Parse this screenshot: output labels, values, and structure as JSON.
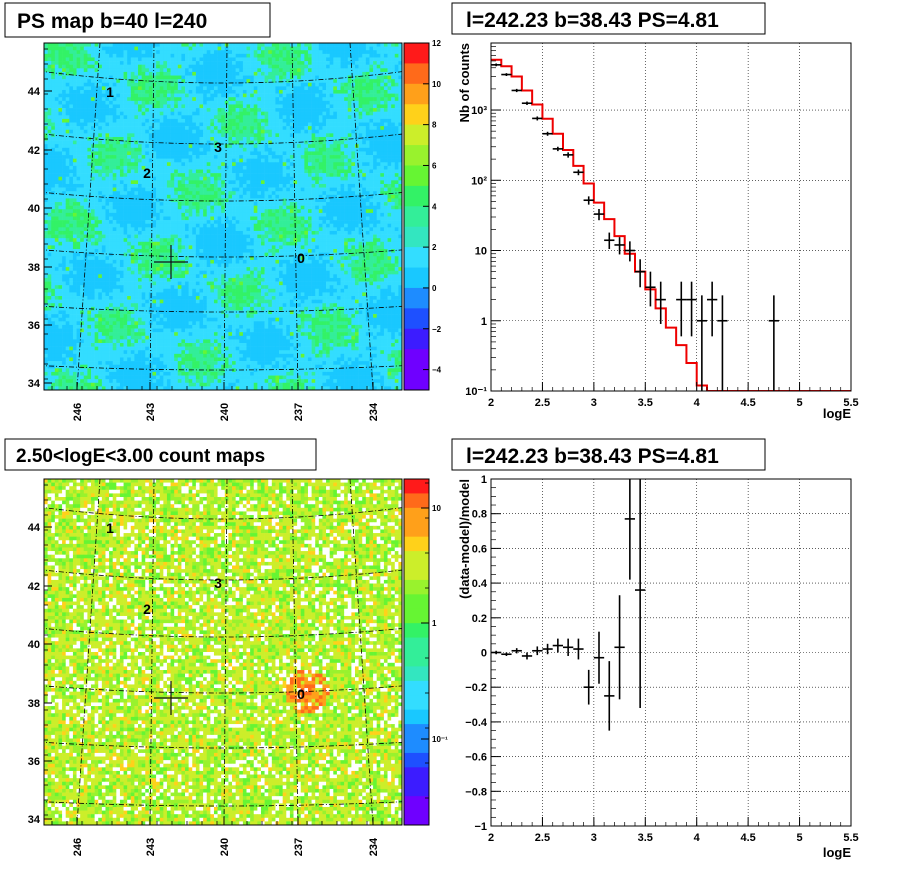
{
  "colors": {
    "axis": "#000000",
    "model": "#ee0000",
    "data": "#000000",
    "grid": "#000000",
    "map_bg": "#33ddff"
  },
  "chart_data": [
    {
      "id": "ps-map",
      "type": "heatmap",
      "title": "PS map b=40 l=240",
      "xticks": [
        "246",
        "243",
        "240",
        "237",
        "234"
      ],
      "yticks": [
        "44",
        "42",
        "40",
        "38",
        "36",
        "34"
      ],
      "colorbar": {
        "min": -5,
        "max": 12,
        "ticks": [
          "12",
          "10",
          "8",
          "6",
          "4",
          "2",
          "0",
          "−2",
          "−4"
        ]
      },
      "sources": [
        {
          "label": "1"
        },
        {
          "label": "3"
        },
        {
          "label": "2"
        },
        {
          "label": "0"
        }
      ],
      "marker": "+"
    },
    {
      "id": "spectrum",
      "type": "line",
      "title": "l=242.23 b=38.43 PS=4.81",
      "xlabel": "logE",
      "ylabel": "Nb of counts",
      "xlim": [
        2,
        5.5
      ],
      "ylim": [
        0.1,
        9000
      ],
      "yscale": "log",
      "xticks": [
        "2",
        "2.5",
        "3",
        "3.5",
        "4",
        "4.5",
        "5",
        "5.5"
      ],
      "yticks": [
        {
          "v": 1000,
          "label": "10³"
        },
        {
          "v": 100,
          "label": "10²"
        },
        {
          "v": 10,
          "label": "10"
        },
        {
          "v": 1,
          "label": "1"
        },
        {
          "v": 0.1,
          "label": "10⁻¹"
        }
      ],
      "grid": true,
      "series": [
        {
          "role": "model",
          "x": [
            2.0,
            2.1,
            2.2,
            2.3,
            2.4,
            2.5,
            2.6,
            2.7,
            2.8,
            2.9,
            3.0,
            3.1,
            3.2,
            3.3,
            3.4,
            3.5,
            3.6,
            3.7,
            3.8,
            3.9,
            4.0,
            4.1,
            4.2,
            4.3,
            4.4,
            4.5,
            4.6,
            4.7,
            4.8,
            4.9,
            5.0,
            5.1,
            5.2,
            5.3,
            5.4,
            5.5
          ],
          "y": [
            5200,
            4200,
            3000,
            1900,
            1200,
            750,
            460,
            270,
            160,
            90,
            48,
            28,
            16,
            9,
            5,
            2.8,
            1.5,
            0.8,
            0.45,
            0.25,
            0.12,
            0.1,
            0.1,
            0.1,
            0.1,
            0.1,
            0.1,
            0.1,
            0.1,
            0.1,
            0.1,
            0.1,
            0.1,
            0.1,
            0.1,
            0.1
          ]
        },
        {
          "role": "data",
          "points": [
            {
              "x": 2.05,
              "y": 4400,
              "lo": 4200,
              "hi": 4600
            },
            {
              "x": 2.15,
              "y": 3200,
              "lo": 3050,
              "hi": 3350
            },
            {
              "x": 2.25,
              "y": 1900,
              "lo": 1800,
              "hi": 2000
            },
            {
              "x": 2.35,
              "y": 1250,
              "lo": 1180,
              "hi": 1320
            },
            {
              "x": 2.45,
              "y": 760,
              "lo": 710,
              "hi": 810
            },
            {
              "x": 2.55,
              "y": 460,
              "lo": 430,
              "hi": 490
            },
            {
              "x": 2.65,
              "y": 280,
              "lo": 260,
              "hi": 300
            },
            {
              "x": 2.75,
              "y": 230,
              "lo": 210,
              "hi": 250
            },
            {
              "x": 2.85,
              "y": 130,
              "lo": 118,
              "hi": 142
            },
            {
              "x": 2.95,
              "y": 52,
              "lo": 45,
              "hi": 59
            },
            {
              "x": 3.05,
              "y": 33,
              "lo": 27,
              "hi": 39
            },
            {
              "x": 3.15,
              "y": 14,
              "lo": 10.5,
              "hi": 18
            },
            {
              "x": 3.25,
              "y": 12,
              "lo": 8.8,
              "hi": 15.5
            },
            {
              "x": 3.35,
              "y": 10,
              "lo": 7,
              "hi": 13.5
            },
            {
              "x": 3.45,
              "y": 5,
              "lo": 3,
              "hi": 7.5
            },
            {
              "x": 3.55,
              "y": 3,
              "lo": 1.6,
              "hi": 5
            },
            {
              "x": 3.65,
              "y": 2,
              "lo": 0.9,
              "hi": 3.6
            },
            {
              "x": 3.85,
              "y": 2,
              "lo": 0.6,
              "hi": 3.6
            },
            {
              "x": 3.95,
              "y": 2,
              "lo": 0.6,
              "hi": 3.6
            },
            {
              "x": 4.05,
              "y": 1,
              "lo": 0.1,
              "hi": 2.3
            },
            {
              "x": 4.15,
              "y": 2,
              "lo": 0.6,
              "hi": 3.6
            },
            {
              "x": 4.25,
              "y": 1,
              "lo": 0.1,
              "hi": 2.3
            },
            {
              "x": 4.75,
              "y": 1,
              "lo": 0.1,
              "hi": 2.3
            }
          ]
        }
      ]
    },
    {
      "id": "count-map",
      "type": "heatmap",
      "title": "2.50<logE<3.00 count maps",
      "xticks": [
        "246",
        "243",
        "240",
        "237",
        "234"
      ],
      "yticks": [
        "44",
        "42",
        "40",
        "38",
        "36",
        "34"
      ],
      "colorbar": {
        "scale": "log",
        "ticks": [
          "10",
          "1",
          "10⁻¹"
        ]
      },
      "sources": [
        {
          "label": "1"
        },
        {
          "label": "3"
        },
        {
          "label": "2"
        },
        {
          "label": "0"
        }
      ],
      "marker": "+"
    },
    {
      "id": "residuals",
      "type": "scatter",
      "title": "l=242.23 b=38.43 PS=4.81",
      "xlabel": "logE",
      "ylabel": "(data-model)/model",
      "xlim": [
        2,
        5.5
      ],
      "ylim": [
        -1,
        1
      ],
      "xticks": [
        "2",
        "2.5",
        "3",
        "3.5",
        "4",
        "4.5",
        "5",
        "5.5"
      ],
      "yticks": [
        "1",
        "0.8",
        "0.6",
        "0.4",
        "0.2",
        "0",
        "−0.2",
        "−0.4",
        "−0.6",
        "−0.8",
        "−1"
      ],
      "grid": true,
      "points": [
        {
          "x": 2.05,
          "y": 0.0,
          "e": 0.01
        },
        {
          "x": 2.15,
          "y": -0.01,
          "e": 0.01
        },
        {
          "x": 2.25,
          "y": 0.01,
          "e": 0.015
        },
        {
          "x": 2.35,
          "y": -0.02,
          "e": 0.02
        },
        {
          "x": 2.45,
          "y": 0.01,
          "e": 0.025
        },
        {
          "x": 2.55,
          "y": 0.02,
          "e": 0.03
        },
        {
          "x": 2.65,
          "y": 0.04,
          "e": 0.04
        },
        {
          "x": 2.75,
          "y": 0.03,
          "e": 0.05
        },
        {
          "x": 2.85,
          "y": 0.02,
          "e": 0.06
        },
        {
          "x": 2.95,
          "y": -0.2,
          "e": 0.1
        },
        {
          "x": 3.05,
          "y": -0.03,
          "e": 0.15
        },
        {
          "x": 3.15,
          "y": -0.25,
          "e": 0.2
        },
        {
          "x": 3.25,
          "y": 0.03,
          "e": 0.3
        },
        {
          "x": 3.35,
          "y": 0.77,
          "e": 0.35
        },
        {
          "x": 3.45,
          "y": 0.36,
          "e": 0.68
        }
      ]
    }
  ]
}
